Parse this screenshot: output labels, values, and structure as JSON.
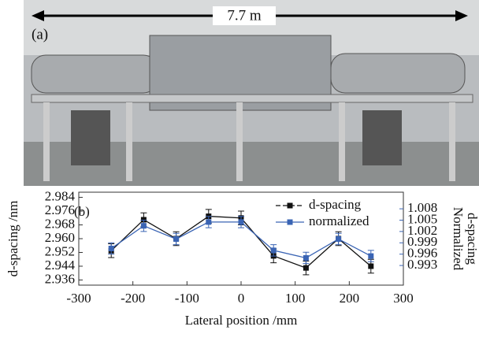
{
  "photo": {
    "label": "(a)",
    "dimension": "7.7 m"
  },
  "chart_data": {
    "type": "line",
    "label": "(b)",
    "x_label": "Lateral position /mm",
    "y_label": "d-spacing /nm",
    "y2_label": [
      "Normalized",
      "d-spacing"
    ],
    "x": [
      -240,
      -180,
      -120,
      -60,
      0,
      60,
      120,
      180,
      240
    ],
    "series": [
      {
        "name": "d-spacing",
        "color": "#111111",
        "values": [
          2.953,
          2.971,
          2.96,
          2.973,
          2.972,
          2.95,
          2.943,
          2.96,
          2.944
        ],
        "errors": [
          0.004,
          0.004,
          0.004,
          0.004,
          0.004,
          0.004,
          0.004,
          0.004,
          0.004
        ]
      },
      {
        "name": "normalized",
        "color": "#3a64b4",
        "axis": "y2",
        "values": [
          0.9975,
          1.0035,
          1.0,
          1.0045,
          1.0045,
          0.997,
          0.995,
          1.0,
          0.9955
        ],
        "errors": [
          0.0015,
          0.0015,
          0.0015,
          0.0015,
          0.0015,
          0.0015,
          0.0015,
          0.0015,
          0.0015
        ]
      }
    ],
    "xlim": [
      -300,
      300
    ],
    "xticks": [
      -300,
      -200,
      -100,
      0,
      100,
      200,
      300
    ],
    "ylim": [
      2.933,
      2.987
    ],
    "yticks": [
      2.936,
      2.944,
      2.952,
      {
        "value": 2.96,
        "label": "2.960"
      },
      2.968,
      2.976,
      2.984
    ],
    "y2lim": [
      0.9878,
      1.0124
    ],
    "y2ticks": [
      0.993,
      0.996,
      0.999,
      1.002,
      1.005,
      1.008
    ],
    "legend": "upper right"
  }
}
